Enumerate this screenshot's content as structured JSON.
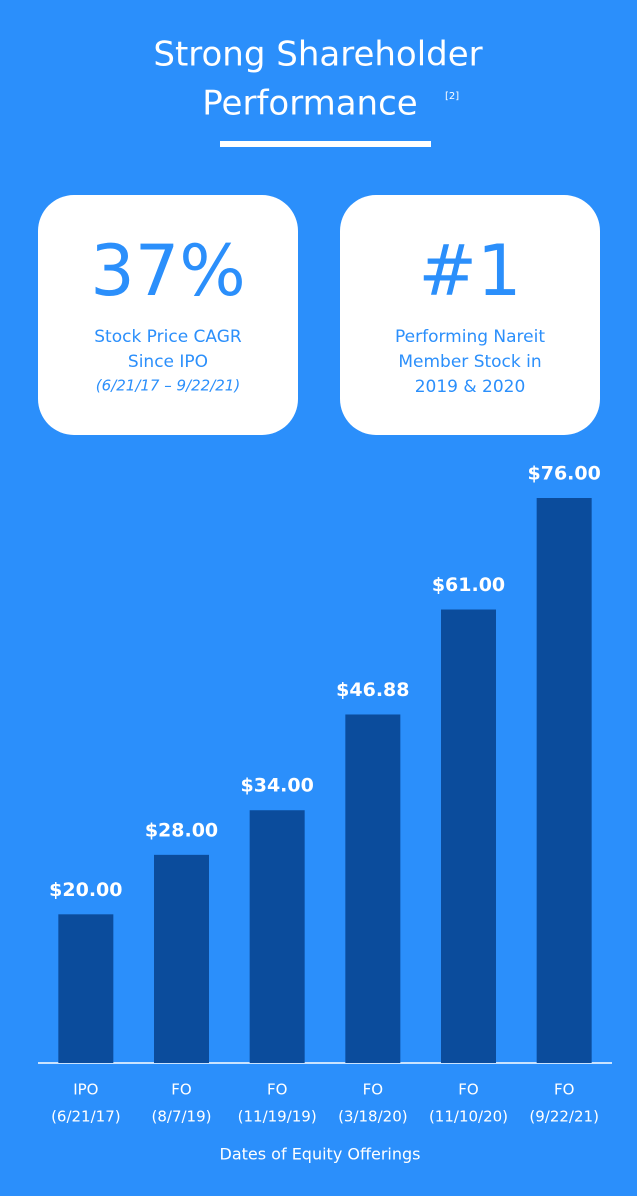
{
  "header": {
    "title_line1": "Strong Shareholder",
    "title_line2": "Performance",
    "footnote": "[2]"
  },
  "cards": [
    {
      "headline": "37%",
      "lines": [
        "Stock Price CAGR",
        "Since IPO"
      ],
      "note": "(6/21/17 – 9/22/21)"
    },
    {
      "headline": "#1",
      "lines": [
        "Performing Nareit",
        "Member Stock in",
        "2019 & 2020"
      ]
    }
  ],
  "chart_data": {
    "type": "bar",
    "categories": [
      [
        "IPO",
        "(6/21/17)"
      ],
      [
        "FO",
        "(8/7/19)"
      ],
      [
        "FO",
        "(11/19/19)"
      ],
      [
        "FO",
        "(3/18/20)"
      ],
      [
        "FO",
        "(11/10/20)"
      ],
      [
        "FO",
        "(9/22/21)"
      ]
    ],
    "values": [
      20,
      28,
      34,
      46.88,
      61,
      76
    ],
    "value_labels": [
      "$20.00",
      "$28.00",
      "$34.00",
      "$46.88",
      "$61.00",
      "$76.00"
    ],
    "color": "#0b4c9c",
    "xlabel": "Dates of Equity Offerings"
  }
}
